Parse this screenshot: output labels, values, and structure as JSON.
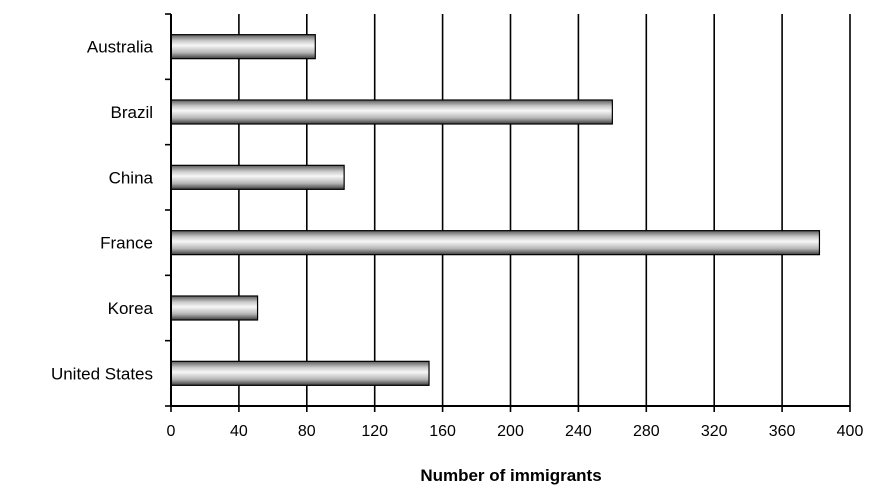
{
  "chart_data": {
    "type": "bar",
    "orientation": "horizontal",
    "categories": [
      "Australia",
      "Brazil",
      "China",
      "France",
      "Korea",
      "United States"
    ],
    "values": [
      85,
      260,
      102,
      382,
      51,
      152
    ],
    "xlabel": "Number of immigrants",
    "ylabel": "",
    "xlim": [
      0,
      400
    ],
    "xticks": [
      "0",
      "40",
      "80",
      "120",
      "160",
      "200",
      "240",
      "280",
      "320",
      "360",
      "400"
    ],
    "grid": "vertical",
    "legend": "none"
  }
}
